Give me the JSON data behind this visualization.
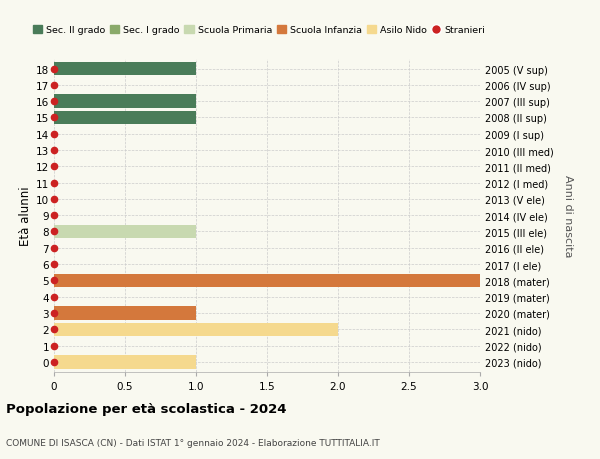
{
  "ages": [
    18,
    17,
    16,
    15,
    14,
    13,
    12,
    11,
    10,
    9,
    8,
    7,
    6,
    5,
    4,
    3,
    2,
    1,
    0
  ],
  "right_labels": [
    "2005 (V sup)",
    "2006 (IV sup)",
    "2007 (III sup)",
    "2008 (II sup)",
    "2009 (I sup)",
    "2010 (III med)",
    "2011 (II med)",
    "2012 (I med)",
    "2013 (V ele)",
    "2014 (IV ele)",
    "2015 (III ele)",
    "2016 (II ele)",
    "2017 (I ele)",
    "2018 (mater)",
    "2019 (mater)",
    "2020 (mater)",
    "2021 (nido)",
    "2022 (nido)",
    "2023 (nido)"
  ],
  "bars": [
    {
      "age": 18,
      "value": 1.0,
      "color": "#4a7c59"
    },
    {
      "age": 16,
      "value": 1.0,
      "color": "#4a7c59"
    },
    {
      "age": 15,
      "value": 1.0,
      "color": "#4a7c59"
    },
    {
      "age": 8,
      "value": 1.0,
      "color": "#c8d9b0"
    },
    {
      "age": 5,
      "value": 3.0,
      "color": "#d4783c"
    },
    {
      "age": 3,
      "value": 1.0,
      "color": "#d4783c"
    },
    {
      "age": 2,
      "value": 2.0,
      "color": "#f5d98e"
    },
    {
      "age": 0,
      "value": 1.0,
      "color": "#f5d98e"
    }
  ],
  "stranieri_ages": [
    18,
    17,
    16,
    15,
    14,
    13,
    12,
    11,
    10,
    9,
    8,
    7,
    6,
    5,
    4,
    3,
    2,
    1,
    0
  ],
  "colors": {
    "sec2": "#4a7c59",
    "sec1": "#8aaa6a",
    "primaria": "#c8d9b0",
    "infanzia": "#d4783c",
    "nido": "#f5d98e",
    "stranieri": "#cc2222"
  },
  "legend_labels": [
    "Sec. II grado",
    "Sec. I grado",
    "Scuola Primaria",
    "Scuola Infanzia",
    "Asilo Nido",
    "Stranieri"
  ],
  "xlim": [
    0,
    3.0
  ],
  "xticks": [
    0,
    0.5,
    1.0,
    1.5,
    2.0,
    2.5,
    3.0
  ],
  "ylabel_left": "Età alunni",
  "ylabel_right": "Anni di nascita",
  "title": "Popolazione per età scolastica - 2024",
  "subtitle": "COMUNE DI ISASCA (CN) - Dati ISTAT 1° gennaio 2024 - Elaborazione TUTTITALIA.IT",
  "background_color": "#f9f9f0",
  "bar_height": 0.82,
  "stranieri_dot_size": 4.5
}
